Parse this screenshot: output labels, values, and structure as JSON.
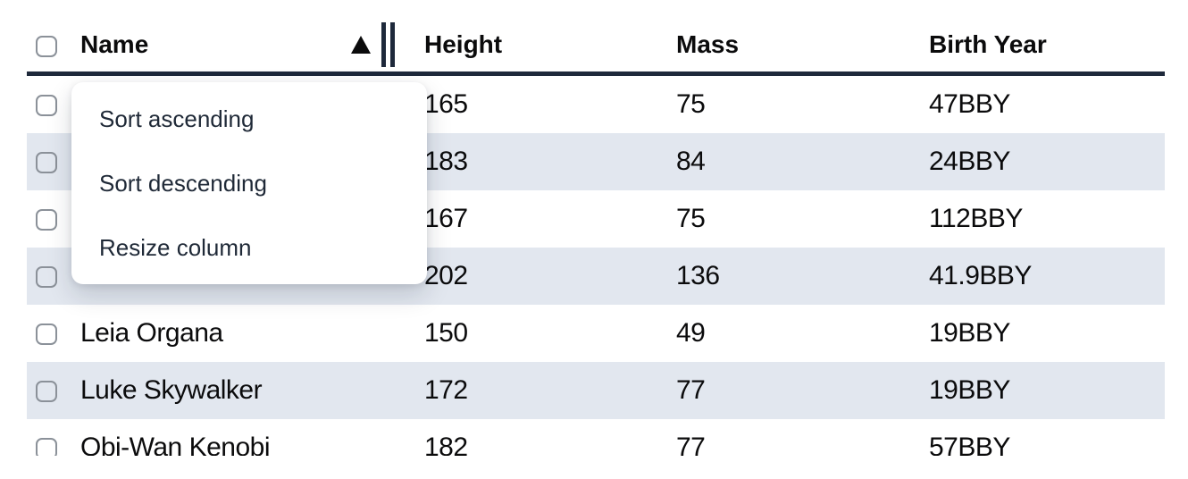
{
  "colors": {
    "header_border": "#1e293b",
    "row_stripe": "#e2e7ef",
    "menu_text": "#1f2937",
    "body_text": "#0b0b0c",
    "checkbox_border": "#8b9199"
  },
  "icons": {
    "sort_indicator": "ascending-triangle-icon",
    "column_resize": "double-bar-resize-icon",
    "row_selector": "checkbox"
  },
  "table": {
    "sort": {
      "column": "Name",
      "direction": "ascending"
    },
    "select_all_checked": false,
    "columns": [
      {
        "label": "Name"
      },
      {
        "label": "Height"
      },
      {
        "label": "Mass"
      },
      {
        "label": "Birth Year"
      }
    ],
    "rows": [
      {
        "name": "",
        "height": "165",
        "mass": "75",
        "birth_year": "47BBY",
        "checked": false
      },
      {
        "name": "",
        "height": "183",
        "mass": "84",
        "birth_year": "24BBY",
        "checked": false
      },
      {
        "name": "",
        "height": "167",
        "mass": "75",
        "birth_year": "112BBY",
        "checked": false
      },
      {
        "name": "",
        "height": "202",
        "mass": "136",
        "birth_year": "41.9BBY",
        "checked": false
      },
      {
        "name": "Leia Organa",
        "height": "150",
        "mass": "49",
        "birth_year": "19BBY",
        "checked": false
      },
      {
        "name": "Luke Skywalker",
        "height": "172",
        "mass": "77",
        "birth_year": "19BBY",
        "checked": false
      },
      {
        "name": "Obi-Wan Kenobi",
        "height": "182",
        "mass": "77",
        "birth_year": "57BBY",
        "checked": false
      }
    ]
  },
  "column_menu": {
    "items": [
      {
        "label": "Sort ascending"
      },
      {
        "label": "Sort descending"
      },
      {
        "label": "Resize column"
      }
    ]
  }
}
